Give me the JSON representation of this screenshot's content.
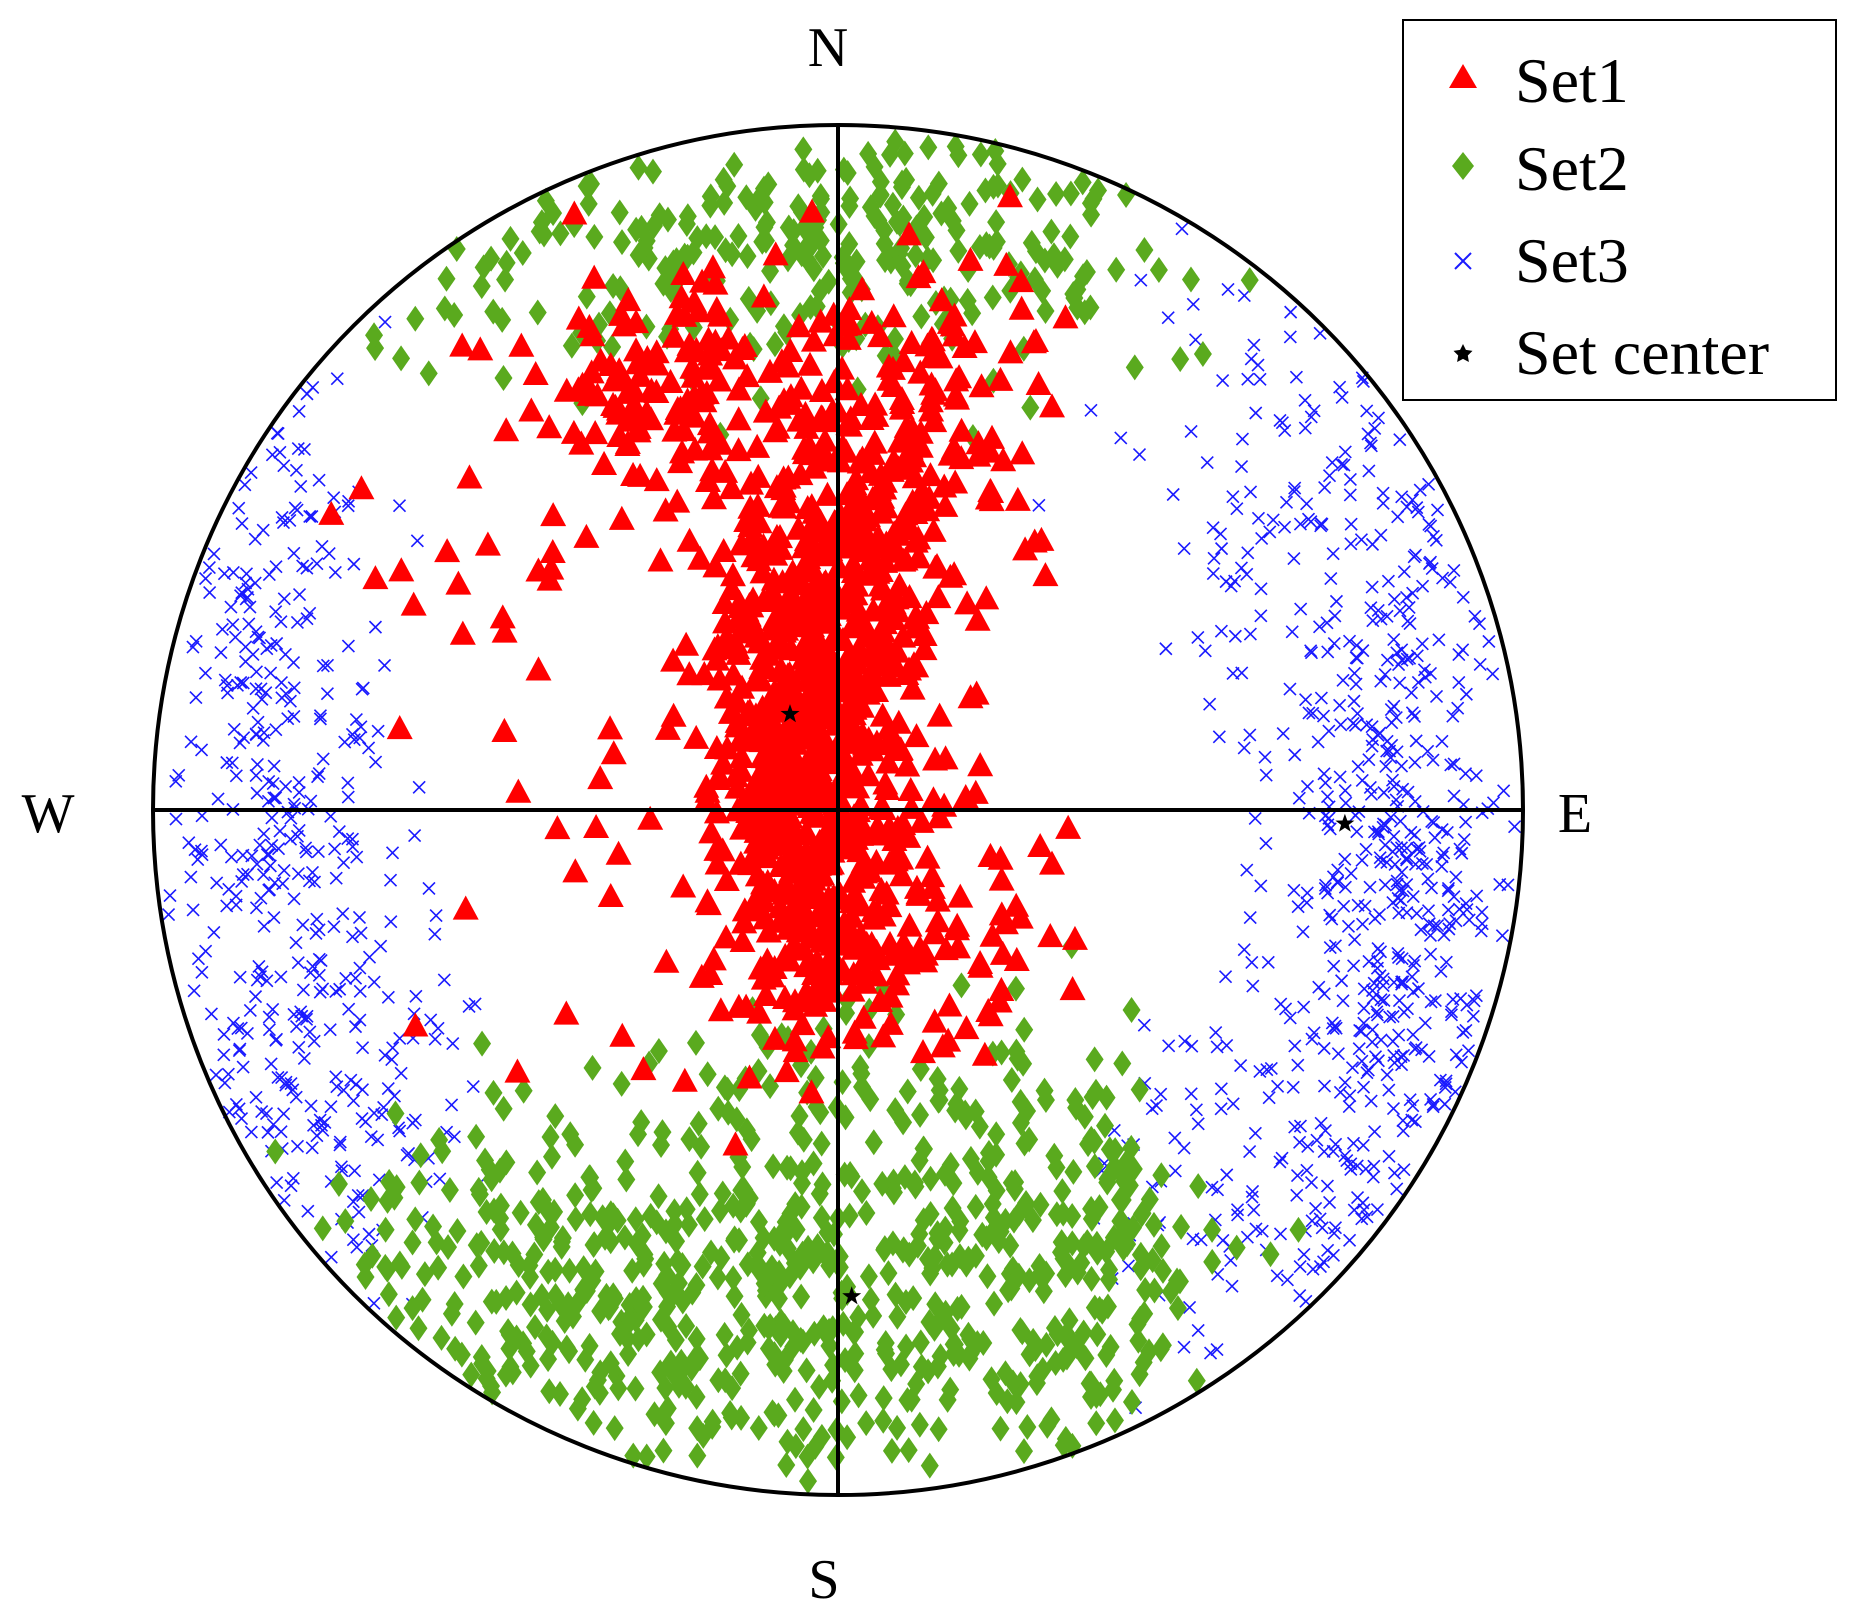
{
  "chart_data": {
    "type": "scatter",
    "projection": "polar stereonet",
    "title": "",
    "compass": {
      "north": "N",
      "south": "S",
      "east": "E",
      "west": "W"
    },
    "xlim": [
      -1,
      1
    ],
    "ylim": [
      -1,
      1
    ],
    "grid": false,
    "legend": {
      "placement": "top-right",
      "entries": [
        "Set1",
        "Set2",
        "Set3",
        "Set center"
      ]
    },
    "series": [
      {
        "name": "Set1",
        "marker": "triangle",
        "color": "#ff0000",
        "clusters": [
          {
            "cx": -0.05,
            "cy": 0.1,
            "sx": 0.06,
            "sy": 0.2,
            "n": 520
          },
          {
            "cx": -0.01,
            "cy": 0.3,
            "sx": 0.09,
            "sy": 0.18,
            "n": 300
          },
          {
            "cx": -0.25,
            "cy": 0.62,
            "sx": 0.08,
            "sy": 0.07,
            "n": 110
          },
          {
            "cx": 0.12,
            "cy": 0.58,
            "sx": 0.12,
            "sy": 0.12,
            "n": 120
          },
          {
            "cx": -0.42,
            "cy": 0.22,
            "sx": 0.15,
            "sy": 0.25,
            "n": 45
          },
          {
            "cx": 0.05,
            "cy": -0.15,
            "sx": 0.13,
            "sy": 0.1,
            "n": 150
          }
        ]
      },
      {
        "name": "Set2",
        "marker": "diamond",
        "color": "#5aaa1e",
        "clusters": [
          {
            "cx": 0.0,
            "cy": 0.82,
            "sx": 0.35,
            "sy": 0.09,
            "n": 280
          },
          {
            "cx": -0.4,
            "cy": -0.7,
            "sx": 0.2,
            "sy": 0.14,
            "n": 270
          },
          {
            "cx": 0.28,
            "cy": -0.68,
            "sx": 0.15,
            "sy": 0.15,
            "n": 270
          },
          {
            "cx": -0.05,
            "cy": -0.75,
            "sx": 0.12,
            "sy": 0.16,
            "n": 150
          },
          {
            "cx": 0.0,
            "cy": -0.42,
            "sx": 0.18,
            "sy": 0.08,
            "n": 70
          }
        ]
      },
      {
        "name": "Set3",
        "marker": "x",
        "color": "#1a1aff",
        "clusters": [
          {
            "cx": 0.82,
            "cy": -0.12,
            "sx": 0.09,
            "sy": 0.3,
            "n": 400
          },
          {
            "cx": 0.7,
            "cy": 0.45,
            "sx": 0.14,
            "sy": 0.18,
            "n": 140
          },
          {
            "cx": 0.62,
            "cy": -0.55,
            "sx": 0.12,
            "sy": 0.13,
            "n": 120
          },
          {
            "cx": -0.82,
            "cy": 0.08,
            "sx": 0.08,
            "sy": 0.35,
            "n": 300
          },
          {
            "cx": -0.72,
            "cy": -0.4,
            "sx": 0.1,
            "sy": 0.15,
            "n": 120
          }
        ]
      }
    ],
    "set_centers": [
      {
        "x": -0.07,
        "y": 0.14
      },
      {
        "x": 0.74,
        "y": -0.02
      },
      {
        "x": 0.02,
        "y": -0.71
      }
    ]
  }
}
